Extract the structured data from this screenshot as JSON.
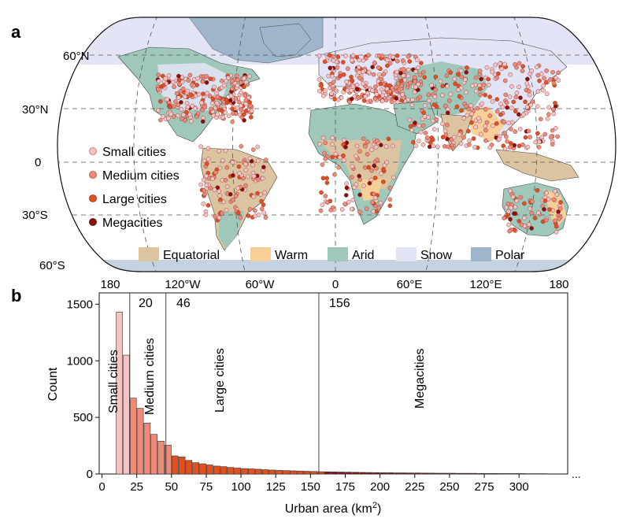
{
  "panel_a": {
    "label": "a",
    "lat_labels": [
      "60°N",
      "30°N",
      "0",
      "30°S",
      "60°S"
    ],
    "lon_labels": [
      "180",
      "120°W",
      "60°W",
      "0",
      "60°E",
      "120°E",
      "180"
    ],
    "legend_cities": [
      {
        "label": "Small cities",
        "color": "#f6c3c3"
      },
      {
        "label": "Medium cities",
        "color": "#ee8a78"
      },
      {
        "label": "Large cities",
        "color": "#e2501f"
      },
      {
        "label": "Megacities",
        "color": "#8b0f0f"
      }
    ],
    "legend_climate": [
      {
        "label": "Equatorial",
        "color": "#dcc4a0"
      },
      {
        "label": "Warm",
        "color": "#f7cf97"
      },
      {
        "label": "Arid",
        "color": "#9fc8bb"
      },
      {
        "label": "Snow",
        "color": "#e3e5f6"
      },
      {
        "label": "Polar",
        "color": "#9fb5cb"
      }
    ]
  },
  "panel_b": {
    "label": "b",
    "thresholds": [
      "20",
      "46",
      "156"
    ],
    "region_labels": [
      "Small cities",
      "Medium cities",
      "Large cities",
      "Megacities"
    ],
    "ellipsis": "..."
  },
  "chart_data": {
    "type": "bar",
    "title": "",
    "xlabel": "Urban area (km",
    "xlabel_sup": "2",
    "xlabel_end": ")",
    "ylabel": "Count",
    "xlim": [
      -2,
      335
    ],
    "ylim": [
      0,
      1600
    ],
    "xticks": [
      0,
      25,
      50,
      75,
      100,
      125,
      150,
      175,
      200,
      225,
      250,
      275,
      300
    ],
    "yticks": [
      0,
      500,
      1000,
      1500
    ],
    "bin_width": 5,
    "bin_starts": [
      10,
      15,
      20,
      25,
      30,
      35,
      40,
      45,
      50,
      55,
      60,
      65,
      70,
      75,
      80,
      85,
      90,
      95,
      100,
      105,
      110,
      115,
      120,
      125,
      130,
      135,
      140,
      145,
      150,
      155,
      160,
      165,
      170,
      175,
      180,
      185,
      190,
      195,
      200,
      205,
      210,
      215,
      220,
      225,
      230,
      235,
      240,
      245,
      250,
      255,
      260,
      265,
      270,
      275,
      280,
      285,
      290,
      295,
      300,
      305,
      310,
      315
    ],
    "values": [
      1430,
      1050,
      670,
      580,
      450,
      350,
      290,
      255,
      160,
      150,
      120,
      100,
      90,
      80,
      70,
      65,
      58,
      52,
      48,
      45,
      42,
      38,
      35,
      32,
      30,
      28,
      26,
      24,
      22,
      20,
      19,
      18,
      17,
      16,
      15,
      14,
      13,
      12,
      11,
      11,
      10,
      10,
      9,
      9,
      8,
      8,
      7,
      7,
      7,
      6,
      6,
      6,
      5,
      5,
      5,
      4,
      4,
      4,
      4,
      3,
      3,
      3
    ],
    "class_colors": {
      "small": "#f6c3c3",
      "medium": "#ee8a78",
      "large": "#e2501f",
      "mega": "#8b0f0f"
    },
    "threshold_values": [
      20,
      46,
      156
    ]
  }
}
